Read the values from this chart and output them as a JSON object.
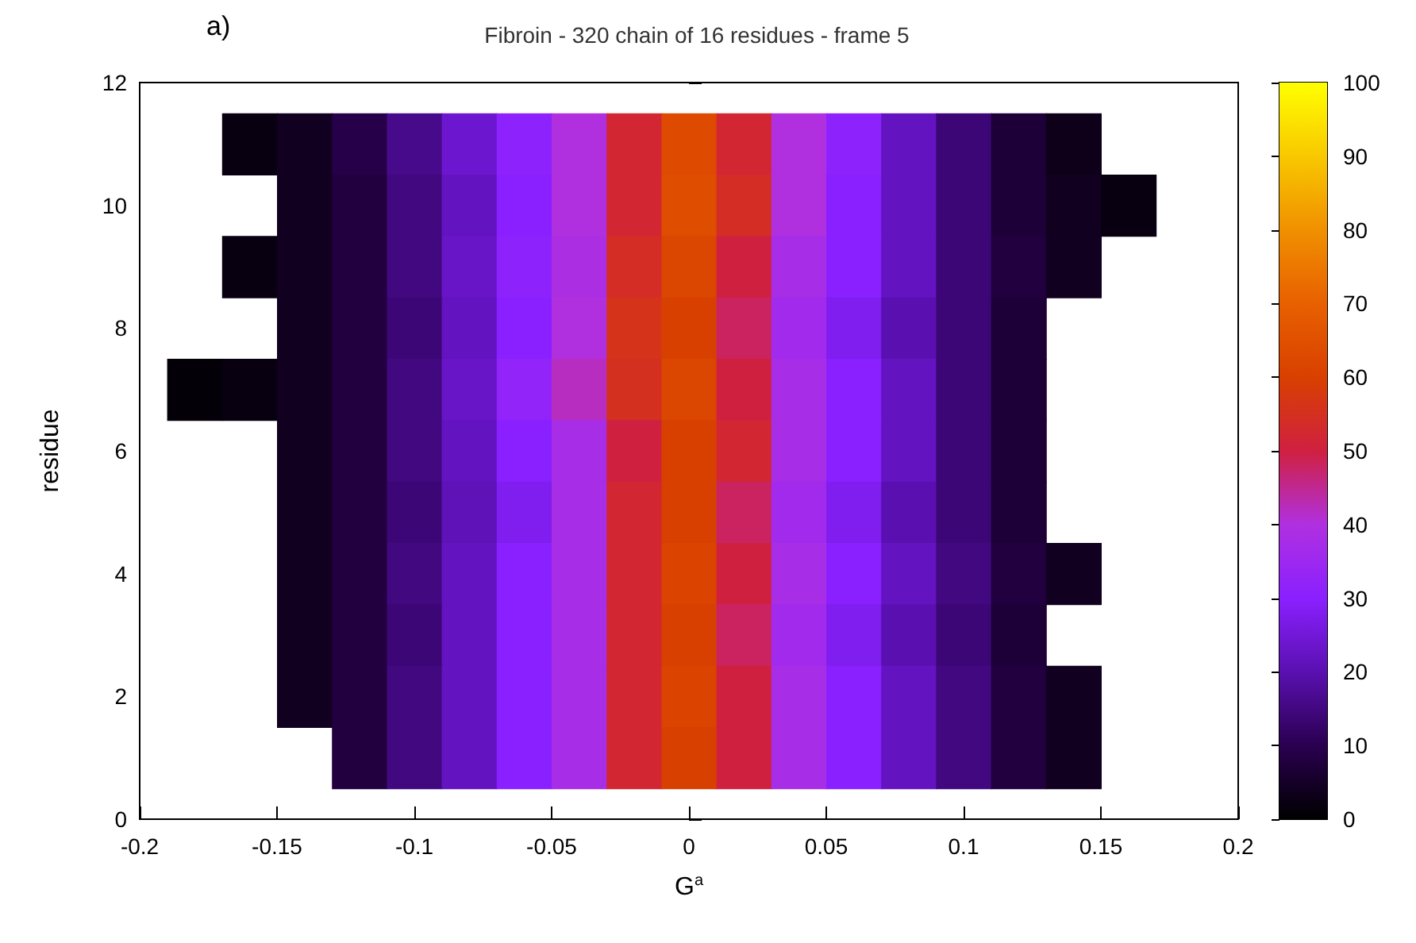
{
  "chart_data": {
    "type": "heatmap",
    "title": "Fibroin - 320 chain of 16 residues - frame 5",
    "xlabel": "G$^{a}$",
    "ylabel": "residue",
    "annotations": [
      "a)"
    ],
    "x": [
      -0.18,
      -0.16,
      -0.14,
      -0.12,
      -0.1,
      -0.08,
      -0.06,
      -0.04,
      -0.02,
      0,
      0.02,
      0.04,
      0.06,
      0.08,
      0.1,
      0.12,
      0.14,
      0.16
    ],
    "y_categories": [
      "12",
      null,
      "10",
      null,
      "8",
      null,
      "6",
      null,
      "4",
      null,
      "2",
      null,
      "0"
    ],
    "cells": [
      [
        null,
        null,
        null,
        null,
        null,
        null,
        null,
        null,
        null,
        null,
        null,
        null,
        null,
        null,
        null,
        null,
        null,
        null
      ],
      [
        null,
        2,
        4,
        9,
        16,
        24,
        31,
        40,
        52,
        63,
        52,
        40,
        31,
        22,
        14,
        7,
        3,
        null
      ],
      [
        null,
        null,
        4,
        8,
        15,
        22,
        30,
        40,
        52,
        64,
        54,
        40,
        30,
        22,
        14,
        7,
        4,
        2
      ],
      [
        null,
        2,
        4,
        8,
        15,
        23,
        31,
        39,
        54,
        62,
        50,
        38,
        30,
        22,
        14,
        8,
        4,
        null
      ],
      [
        null,
        null,
        4,
        8,
        14,
        22,
        30,
        40,
        56,
        60,
        48,
        36,
        28,
        20,
        14,
        7,
        null,
        null
      ],
      [
        1,
        2,
        4,
        8,
        15,
        23,
        32,
        42,
        55,
        62,
        50,
        38,
        30,
        22,
        14,
        7,
        null,
        null
      ],
      [
        null,
        null,
        4,
        8,
        15,
        22,
        30,
        38,
        50,
        60,
        52,
        38,
        30,
        22,
        14,
        7,
        null,
        null
      ],
      [
        null,
        null,
        4,
        8,
        14,
        21,
        28,
        38,
        52,
        60,
        48,
        36,
        28,
        20,
        14,
        7,
        null,
        null
      ],
      [
        null,
        null,
        4,
        8,
        15,
        22,
        30,
        38,
        52,
        61,
        50,
        38,
        30,
        22,
        15,
        8,
        4,
        null
      ],
      [
        null,
        null,
        4,
        8,
        14,
        22,
        30,
        38,
        52,
        60,
        48,
        36,
        28,
        20,
        14,
        7,
        null,
        null
      ],
      [
        null,
        null,
        4,
        8,
        15,
        22,
        30,
        38,
        52,
        61,
        50,
        38,
        30,
        22,
        15,
        8,
        4,
        null
      ],
      [
        null,
        null,
        null,
        8,
        15,
        22,
        30,
        38,
        52,
        60,
        50,
        38,
        30,
        22,
        15,
        8,
        4,
        null
      ],
      [
        null,
        null,
        null,
        null,
        null,
        null,
        null,
        null,
        null,
        null,
        null,
        null,
        null,
        null,
        null,
        null,
        null,
        null
      ]
    ],
    "xlim": [
      -0.2,
      0.2
    ],
    "xticks": [
      -0.2,
      -0.15,
      -0.1,
      -0.05,
      0,
      0.05,
      0.1,
      0.15,
      0.2
    ],
    "clim": [
      0,
      100
    ],
    "cticks": [
      0,
      10,
      20,
      30,
      40,
      50,
      60,
      70,
      80,
      90,
      100
    ]
  }
}
